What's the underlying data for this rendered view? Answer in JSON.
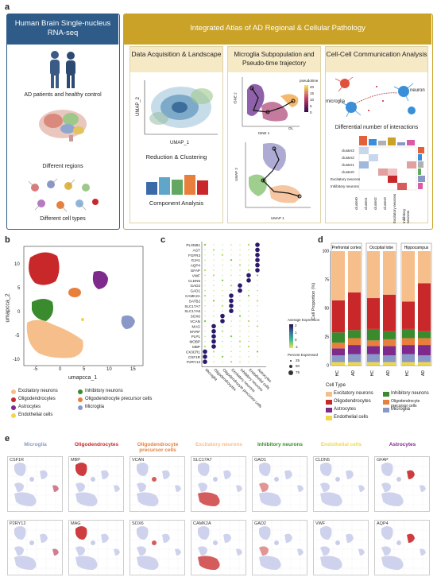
{
  "panel_labels": {
    "a": "a",
    "b": "b",
    "c": "c",
    "d": "d",
    "e": "e"
  },
  "panel_a": {
    "left_title": "Human Brain Single-nucleus RNA-seq",
    "left_items": [
      "AD patients and healthy control",
      "Different regions",
      "Different cell types"
    ],
    "right_title": "Integrated Atlas of AD Regional & Cellular Pathology",
    "sub1": {
      "title": "Data Acquisition & Landscape",
      "xlabel": "UMAP_1",
      "ylabel": "UMAP_2",
      "caption1": "Reduction & Clustering",
      "caption2": "Component Analysis"
    },
    "sub2": {
      "title": "Microglia Subpopulation and Pseudo-time trajectory",
      "xlabel1": "tSNE 1",
      "ylabel1": "tSNE 2",
      "legend": "pseudotime",
      "ticks": [
        "0",
        "5",
        "10",
        "15",
        "20"
      ],
      "end_label": "OL",
      "xlabel2": "UMAP 1",
      "ylabel2": "UMAP 2"
    },
    "sub3": {
      "title": "Cell-Cell Communication Analysis",
      "lbl_microglia": "microglia",
      "lbl_neuron": "neuron",
      "caption": "Differential number of interactions",
      "rows": [
        "cluster3",
        "cluster2",
        "cluster1",
        "cluster0",
        "Excitatory neurons",
        "Inhibitory neurons"
      ],
      "cols": [
        "cluster0",
        "cluster1",
        "cluster2",
        "cluster3",
        "Excitatory neurons",
        "Inhibitory neurons"
      ]
    }
  },
  "panel_b": {
    "xlabel": "umapcca_1",
    "ylabel": "umapcca_2",
    "xticks": [
      "-5",
      "0",
      "5",
      "10",
      "15"
    ],
    "yticks": [
      "10",
      "5",
      "0",
      "-5",
      "-10"
    ],
    "legend": [
      {
        "name": "Excitatory neurons",
        "color": "#f6be8a"
      },
      {
        "name": "Inhibitory neurons",
        "color": "#3a8a2e"
      },
      {
        "name": "Oligodendrocytes",
        "color": "#c8282a"
      },
      {
        "name": "Oligodendrocyte precursor cells",
        "color": "#e87f3c"
      },
      {
        "name": "Astrocytes",
        "color": "#7d2a8c"
      },
      {
        "name": "Microglia",
        "color": "#8a98c8"
      },
      {
        "name": "Endothelial cells",
        "color": "#f0d84a"
      }
    ]
  },
  "panel_c": {
    "genes": [
      "PLXNB1",
      "AGT",
      "FGFR3",
      "GJA1",
      "AQP4",
      "GFAP",
      "VWF",
      "CLDN5",
      "GAD2",
      "GAD1",
      "CAMK2A",
      "SATB2",
      "SLC17A7",
      "SLC17A6",
      "SOX6",
      "VCAN",
      "MAG",
      "MYRF",
      "PLP1",
      "MOBP",
      "MBP",
      "CX3CR1",
      "CSF1R",
      "P2RY12"
    ],
    "cell_types": [
      "Microglia",
      "Oligodendrocytes",
      "Oligodendrocyte precursor cells",
      "Excitatory neurons",
      "Inhibitory neurons",
      "Endothelial cells",
      "Astrocytes"
    ],
    "legend_expr_title": "Average Expression",
    "legend_expr_ticks": [
      "2",
      "1",
      "0",
      "-1"
    ],
    "legend_pct_title": "Percent Expressed",
    "legend_pct_ticks": [
      "25",
      "50",
      "75"
    ]
  },
  "panel_d": {
    "ylabel": "Cell Proportion (%)",
    "yticks": [
      "100",
      "75",
      "50",
      "25",
      "0"
    ],
    "regions": [
      "Prefrontal cortex",
      "Occipital lobe",
      "Hippocampus"
    ],
    "groups": [
      "HC",
      "AD"
    ],
    "legend_title": "Cell Type",
    "legend": [
      {
        "name": "Excitatory neurons",
        "color": "#f6be8a"
      },
      {
        "name": "Inhibitory neurons",
        "color": "#3a8a2e"
      },
      {
        "name": "Oligodendrocytes",
        "color": "#c8282a"
      },
      {
        "name": "Oligodendrocyte precursor cells",
        "color": "#e87f3c"
      },
      {
        "name": "Astrocytes",
        "color": "#7d2a8c"
      },
      {
        "name": "Microglia",
        "color": "#8a98c8"
      },
      {
        "name": "Endothelial cells",
        "color": "#f0d84a"
      }
    ]
  },
  "chart_data": {
    "type": "bar",
    "title": "",
    "ylabel": "Cell Proportion (%)",
    "ylim": [
      0,
      100
    ],
    "categories": [
      "Prefrontal cortex HC",
      "Prefrontal cortex AD",
      "Occipital lobe HC",
      "Occipital lobe AD",
      "Hippocampus HC",
      "Hippocampus AD"
    ],
    "stacked": true,
    "series": [
      {
        "name": "Endothelial cells",
        "values": [
          3,
          3,
          3,
          3,
          3,
          3
        ]
      },
      {
        "name": "Microglia",
        "values": [
          6,
          7,
          7,
          6,
          7,
          6
        ]
      },
      {
        "name": "Astrocytes",
        "values": [
          6,
          8,
          7,
          8,
          8,
          9
        ]
      },
      {
        "name": "Oligodendrocyte precursor cells",
        "values": [
          5,
          6,
          5,
          6,
          6,
          6
        ]
      },
      {
        "name": "Inhibitory neurons",
        "values": [
          9,
          7,
          10,
          7,
          8,
          6
        ]
      },
      {
        "name": "Oligodendrocytes",
        "values": [
          28,
          33,
          27,
          32,
          24,
          42
        ]
      },
      {
        "name": "Excitatory neurons",
        "values": [
          43,
          36,
          41,
          38,
          44,
          28
        ]
      }
    ]
  },
  "panel_e": {
    "row1_titles": [
      "Microglia",
      "Oligodendrocytes",
      "Oligodendrocyte precursor cells",
      "Excitatory neurons",
      "Inhibitory neurons",
      "Endothelial cells",
      "Astrocytes"
    ],
    "title_colors": [
      "#8a98c8",
      "#c8282a",
      "#e87f3c",
      "#f6be8a",
      "#3a8a2e",
      "#f0d84a",
      "#7d2a8c"
    ],
    "row1_genes": [
      "CSF1R",
      "MBP",
      "VCAN",
      "SLC17A7",
      "GAD1",
      "CLDN5",
      "GFAP"
    ],
    "row2_genes": [
      "P2RY12",
      "MAG",
      "SOX6",
      "CAMK2A",
      "GAD2",
      "VWF",
      "AQP4"
    ]
  }
}
